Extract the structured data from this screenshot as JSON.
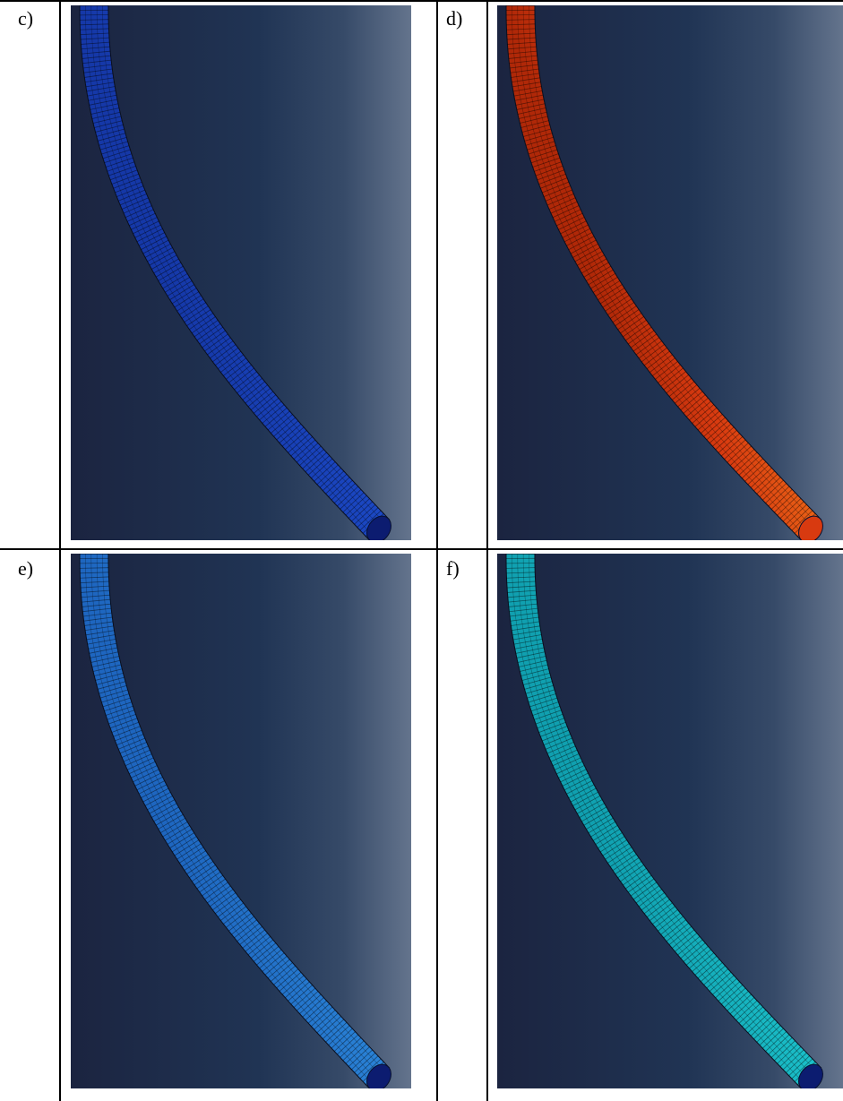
{
  "panels": [
    {
      "label": "c)",
      "scheme": "blue"
    },
    {
      "label": "d)",
      "scheme": "rainbow"
    },
    {
      "label": "e)",
      "scheme": "lightblue"
    },
    {
      "label": "f)",
      "scheme": "cyan"
    }
  ],
  "colors": {
    "background_dark": "#1a2742",
    "background_light": "#64748d",
    "blue_tube": "#1e4fd0",
    "lightblue_tube": "#2f8fe0",
    "cyan_tube": "#1ec8d0",
    "rainbow_red": "#d83a10",
    "rainbow_yellow": "#e8d020",
    "rainbow_green": "#2cb020",
    "rainbow_blue": "#1030c0"
  }
}
